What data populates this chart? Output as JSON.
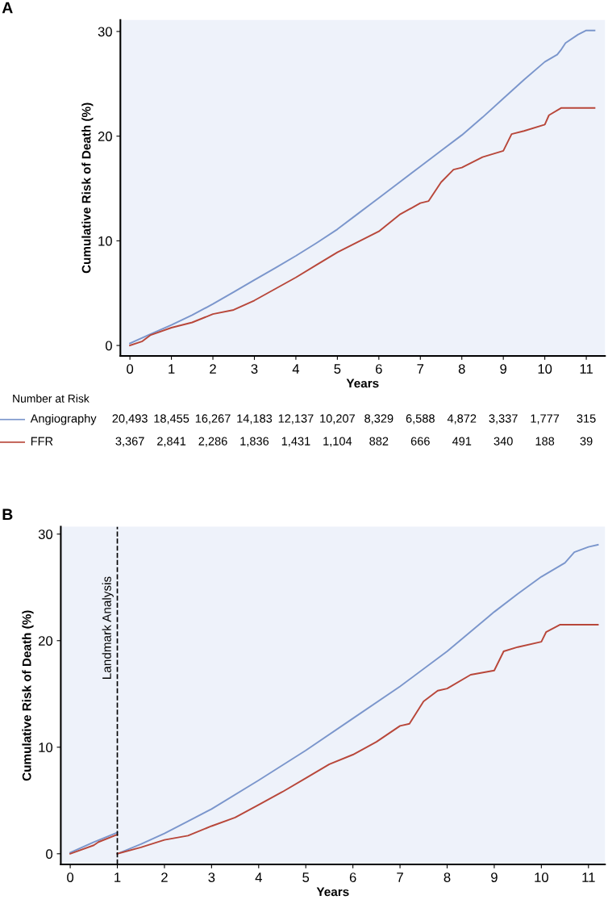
{
  "chart_data": [
    {
      "type": "line",
      "legend": "bottom",
      "xlabel": "Years",
      "ylabel": "Cumulative Risk of Death (%)",
      "xlim": [
        -0.23,
        11.45
      ],
      "xticks": [
        0,
        1,
        2,
        3,
        4,
        5,
        6,
        7,
        8,
        9,
        10,
        11
      ],
      "ylim": [
        -1.0,
        31.1
      ],
      "yticks": [
        0,
        10,
        20,
        30
      ],
      "grid": false,
      "series": [
        {
          "name": "Angiography",
          "color": "#7b96cc",
          "x": [
            0,
            0.5,
            1,
            1.5,
            2,
            2.5,
            3,
            3.5,
            4,
            4.5,
            5,
            5.5,
            6,
            6.5,
            7,
            7.5,
            8,
            8.5,
            9,
            9.5,
            10,
            10.3,
            10.4,
            10.5,
            10.8,
            11,
            11.2
          ],
          "values": [
            0.2,
            1.1,
            1.96,
            2.9,
            3.96,
            5.1,
            6.26,
            7.4,
            8.56,
            9.8,
            11.1,
            12.6,
            14.1,
            15.6,
            17.1,
            18.6,
            20.1,
            21.8,
            23.6,
            25.4,
            27.1,
            27.8,
            28.3,
            28.9,
            29.7,
            30.1,
            30.1
          ]
        },
        {
          "name": "FFR",
          "color": "#b8473a",
          "x": [
            0,
            0.3,
            0.5,
            1,
            1.5,
            2,
            2.5,
            3,
            3.5,
            4,
            4.5,
            5,
            5.5,
            6,
            6.5,
            7,
            7.2,
            7.5,
            7.8,
            8,
            8.5,
            9,
            9.2,
            9.5,
            10,
            10.1,
            10.4,
            11.2
          ],
          "values": [
            0,
            0.4,
            1.0,
            1.7,
            2.2,
            3.0,
            3.4,
            4.3,
            5.4,
            6.5,
            7.7,
            8.9,
            9.9,
            10.9,
            12.5,
            13.6,
            13.8,
            15.6,
            16.8,
            17.0,
            18.0,
            18.6,
            20.2,
            20.5,
            21.1,
            22.0,
            22.7,
            22.7
          ]
        }
      ],
      "annotations": [
        "A",
        "Number at Risk",
        "20,493",
        "18,455",
        "16,267",
        "14,183",
        "12,137",
        "10,207",
        "8,329",
        "6,588",
        "4,872",
        "3,337",
        "1,777",
        "315",
        "3,367",
        "2,841",
        "2,286",
        "1,836",
        "1,431",
        "1,104",
        "882",
        "666",
        "491",
        "340",
        "188",
        "39"
      ]
    },
    {
      "type": "line",
      "xlabel": "Years",
      "ylabel": "Cumulative Risk of Death (%)",
      "xlim": [
        -0.2,
        11.35
      ],
      "xticks": [
        0,
        1,
        2,
        3,
        4,
        5,
        6,
        7,
        8,
        9,
        10,
        11
      ],
      "ylim": [
        -1.0,
        30.7
      ],
      "yticks": [
        0,
        10,
        20,
        30
      ],
      "grid": false,
      "series": [
        {
          "color": "#7b96cc",
          "x": [
            0,
            0.5,
            1
          ],
          "values": [
            0.1,
            1.1,
            2.0
          ]
        },
        {
          "color": "#7b96cc",
          "x": [
            1,
            1.5,
            2,
            3,
            4,
            5,
            6,
            7,
            8,
            9,
            9.5,
            10,
            10.5,
            10.7,
            11,
            11.2
          ],
          "values": [
            0,
            0.9,
            1.9,
            4.2,
            6.9,
            9.7,
            12.7,
            15.7,
            19.0,
            22.7,
            24.4,
            26.0,
            27.3,
            28.3,
            28.8,
            29.0
          ]
        },
        {
          "color": "#b8473a",
          "x": [
            0,
            0.5,
            0.6,
            1
          ],
          "values": [
            0,
            0.8,
            1.1,
            1.8
          ]
        },
        {
          "color": "#b8473a",
          "x": [
            1,
            1.5,
            2,
            2.5,
            3,
            3.5,
            4,
            4.5,
            5,
            5.5,
            6,
            6.5,
            7,
            7.2,
            7.5,
            7.8,
            8,
            8.5,
            9,
            9.2,
            9.5,
            10,
            10.1,
            10.4,
            11.2
          ],
          "values": [
            0,
            0.6,
            1.3,
            1.7,
            2.6,
            3.4,
            4.6,
            5.8,
            7.1,
            8.4,
            9.3,
            10.5,
            12.0,
            12.2,
            14.3,
            15.3,
            15.5,
            16.8,
            17.2,
            19.0,
            19.4,
            19.9,
            20.8,
            21.5,
            21.5
          ]
        }
      ],
      "ref_lines": [
        {
          "axis": "x",
          "value": 1,
          "label": "Landmark Analysis",
          "color": "#000000",
          "line_style": "dashed"
        }
      ],
      "annotations": [
        "B"
      ]
    }
  ]
}
